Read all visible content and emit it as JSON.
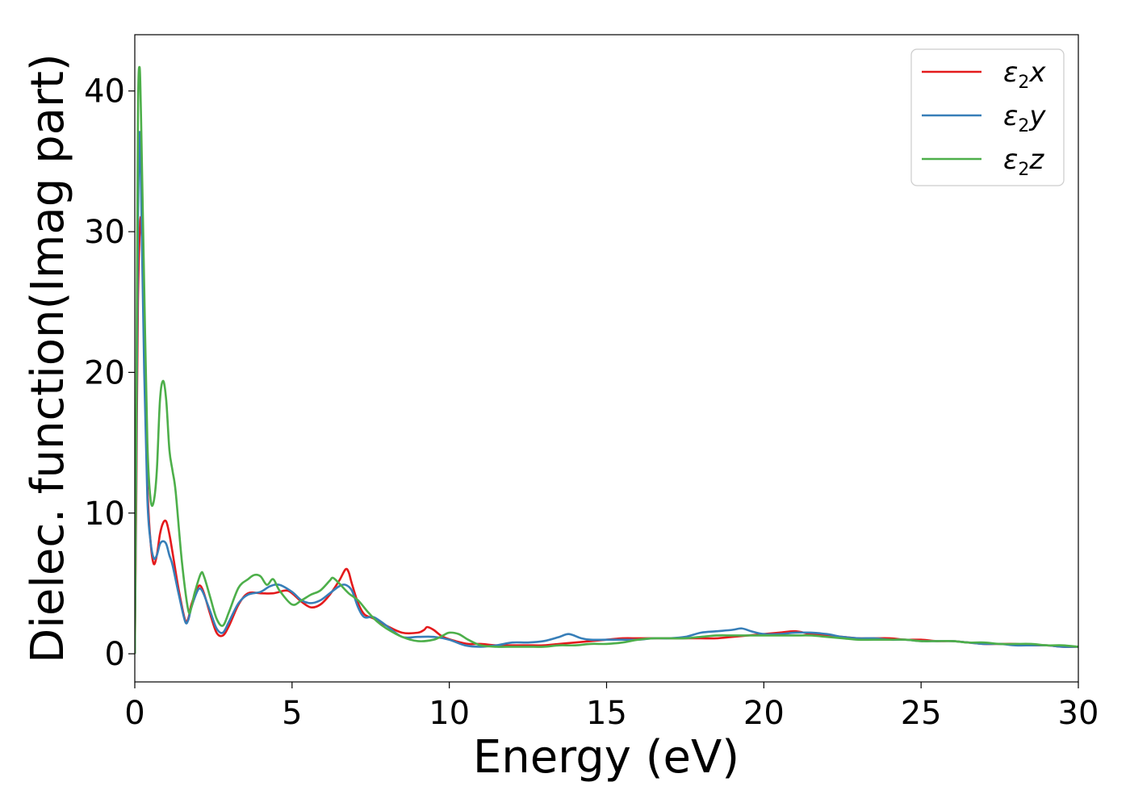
{
  "chart_data": {
    "type": "line",
    "xlabel": "Energy (eV)",
    "ylabel": "Dielec. function(Imag part)",
    "xlim": [
      0,
      30
    ],
    "ylim": [
      -2,
      44
    ],
    "xticks": [
      0,
      5,
      10,
      15,
      20,
      25,
      30
    ],
    "yticks": [
      0,
      10,
      20,
      30,
      40
    ],
    "grid": false,
    "legend_position": "top-right",
    "series": [
      {
        "name": "ε2x",
        "legend_base": "ε",
        "legend_sub": "2",
        "legend_var": "x",
        "color": "#e41a1c",
        "x": [
          0,
          0.05,
          0.1,
          0.2,
          0.3,
          0.4,
          0.5,
          0.6,
          0.7,
          0.8,
          0.9,
          1.0,
          1.1,
          1.2,
          1.4,
          1.6,
          1.7,
          1.8,
          2.0,
          2.1,
          2.2,
          2.4,
          2.6,
          2.8,
          3.0,
          3.3,
          3.6,
          4.0,
          4.4,
          4.8,
          5.0,
          5.3,
          5.6,
          5.9,
          6.2,
          6.5,
          6.7,
          6.8,
          6.9,
          7.1,
          7.3,
          7.6,
          8.0,
          8.5,
          9.0,
          9.2,
          9.3,
          9.5,
          9.8,
          10.2,
          10.6,
          11.0,
          11.5,
          12.0,
          12.5,
          13.0,
          13.5,
          14.0,
          14.5,
          15.0,
          15.5,
          16.0,
          16.5,
          17.0,
          17.5,
          18.0,
          18.5,
          19.0,
          19.5,
          20.0,
          20.5,
          21.0,
          21.5,
          22.0,
          22.5,
          23.0,
          23.5,
          24.0,
          24.5,
          25.0,
          25.5,
          26.0,
          26.5,
          27.0,
          27.5,
          28.0,
          28.5,
          29.0,
          29.5,
          30.0
        ],
        "y": [
          0,
          12,
          25,
          31,
          22,
          12,
          8,
          6.4,
          7.0,
          8.5,
          9.3,
          9.4,
          8.5,
          7.2,
          4.5,
          2.4,
          2.5,
          3.5,
          4.7,
          4.8,
          4.3,
          2.8,
          1.5,
          1.3,
          2.0,
          3.5,
          4.3,
          4.3,
          4.3,
          4.5,
          4.3,
          3.7,
          3.3,
          3.5,
          4.2,
          5.2,
          6.0,
          5.8,
          5.0,
          3.6,
          2.8,
          2.5,
          2.0,
          1.5,
          1.5,
          1.7,
          1.9,
          1.7,
          1.2,
          0.9,
          0.7,
          0.7,
          0.6,
          0.6,
          0.6,
          0.6,
          0.7,
          0.8,
          0.9,
          1.0,
          1.1,
          1.1,
          1.1,
          1.1,
          1.1,
          1.1,
          1.1,
          1.2,
          1.3,
          1.4,
          1.5,
          1.6,
          1.4,
          1.3,
          1.2,
          1.1,
          1.1,
          1.1,
          1.0,
          1.0,
          0.9,
          0.9,
          0.8,
          0.7,
          0.7,
          0.7,
          0.6,
          0.6,
          0.5,
          0.5
        ]
      },
      {
        "name": "ε2y",
        "legend_base": "ε",
        "legend_sub": "2",
        "legend_var": "y",
        "color": "#377eb8",
        "x": [
          0,
          0.05,
          0.1,
          0.15,
          0.2,
          0.3,
          0.4,
          0.5,
          0.6,
          0.7,
          0.8,
          0.9,
          1.0,
          1.1,
          1.2,
          1.4,
          1.6,
          1.7,
          1.8,
          2.0,
          2.1,
          2.2,
          2.4,
          2.6,
          2.8,
          3.0,
          3.3,
          3.6,
          4.0,
          4.3,
          4.6,
          5.0,
          5.3,
          5.6,
          5.9,
          6.2,
          6.5,
          6.7,
          6.9,
          7.1,
          7.3,
          7.6,
          8.0,
          8.5,
          9.0,
          9.5,
          10.0,
          10.5,
          11.0,
          11.5,
          12.0,
          12.5,
          13.0,
          13.5,
          13.8,
          14.2,
          14.5,
          15.0,
          15.5,
          16.0,
          16.5,
          17.0,
          17.5,
          18.0,
          18.5,
          19.0,
          19.3,
          19.6,
          20.0,
          20.5,
          21.0,
          21.5,
          22.0,
          22.5,
          23.0,
          23.5,
          24.0,
          24.5,
          25.0,
          25.5,
          26.0,
          26.5,
          27.0,
          27.5,
          28.0,
          28.5,
          29.0,
          29.5,
          30.0
        ],
        "y": [
          0,
          15,
          30,
          37,
          33,
          20,
          11,
          8.0,
          6.8,
          7.0,
          7.8,
          8.0,
          7.8,
          7.0,
          6.3,
          4.2,
          2.3,
          2.4,
          3.3,
          4.5,
          4.6,
          4.2,
          3.0,
          1.8,
          1.5,
          2.3,
          3.6,
          4.2,
          4.4,
          4.8,
          4.9,
          4.4,
          3.8,
          3.6,
          3.8,
          4.3,
          4.8,
          4.9,
          4.5,
          3.3,
          2.6,
          2.6,
          2.0,
          1.2,
          1.2,
          1.2,
          1.0,
          0.6,
          0.5,
          0.6,
          0.8,
          0.8,
          0.9,
          1.2,
          1.4,
          1.1,
          1.0,
          1.0,
          1.0,
          1.0,
          1.1,
          1.1,
          1.2,
          1.5,
          1.6,
          1.7,
          1.8,
          1.6,
          1.4,
          1.4,
          1.5,
          1.5,
          1.4,
          1.2,
          1.1,
          1.1,
          1.0,
          1.0,
          0.9,
          0.9,
          0.9,
          0.8,
          0.7,
          0.7,
          0.6,
          0.6,
          0.6,
          0.5,
          0.5
        ]
      },
      {
        "name": "ε2z",
        "legend_base": "ε",
        "legend_sub": "2",
        "legend_var": "z",
        "color": "#4daf4a",
        "x": [
          0,
          0.05,
          0.1,
          0.15,
          0.2,
          0.3,
          0.4,
          0.5,
          0.6,
          0.7,
          0.8,
          0.9,
          1.0,
          1.1,
          1.2,
          1.3,
          1.5,
          1.7,
          1.8,
          1.9,
          2.1,
          2.2,
          2.4,
          2.6,
          2.8,
          3.0,
          3.3,
          3.6,
          3.8,
          4.0,
          4.2,
          4.4,
          4.6,
          5.0,
          5.3,
          5.6,
          5.9,
          6.2,
          6.3,
          6.5,
          6.8,
          7.1,
          7.4,
          7.7,
          8.0,
          8.5,
          9.0,
          9.5,
          9.8,
          10.0,
          10.3,
          10.6,
          11.0,
          11.5,
          12.0,
          12.5,
          13.0,
          13.5,
          14.0,
          14.5,
          15.0,
          15.5,
          16.0,
          16.5,
          17.0,
          17.5,
          18.0,
          18.5,
          19.0,
          19.5,
          20.0,
          20.5,
          21.0,
          21.5,
          22.0,
          22.5,
          23.0,
          23.5,
          24.0,
          24.5,
          25.0,
          25.5,
          26.0,
          26.5,
          27.0,
          27.5,
          28.0,
          28.5,
          29.0,
          29.5,
          30.0
        ],
        "y": [
          0,
          18,
          38,
          41.7,
          38,
          26,
          15,
          11,
          10.8,
          13,
          18,
          19.4,
          18,
          14.5,
          13,
          11.5,
          6.5,
          3.1,
          3.3,
          4.3,
          5.7,
          5.5,
          4.0,
          2.5,
          2.0,
          3.0,
          4.7,
          5.3,
          5.6,
          5.5,
          4.9,
          5.3,
          4.5,
          3.5,
          3.8,
          4.2,
          4.5,
          5.2,
          5.4,
          5.0,
          4.3,
          3.8,
          3.0,
          2.3,
          1.8,
          1.2,
          0.9,
          1.0,
          1.3,
          1.5,
          1.4,
          1.0,
          0.6,
          0.5,
          0.5,
          0.5,
          0.5,
          0.6,
          0.6,
          0.7,
          0.7,
          0.8,
          1.0,
          1.1,
          1.1,
          1.1,
          1.2,
          1.3,
          1.3,
          1.3,
          1.3,
          1.3,
          1.3,
          1.3,
          1.2,
          1.1,
          1.0,
          1.0,
          1.0,
          1.0,
          0.9,
          0.9,
          0.9,
          0.8,
          0.8,
          0.7,
          0.7,
          0.7,
          0.6,
          0.6,
          0.5
        ]
      }
    ]
  }
}
